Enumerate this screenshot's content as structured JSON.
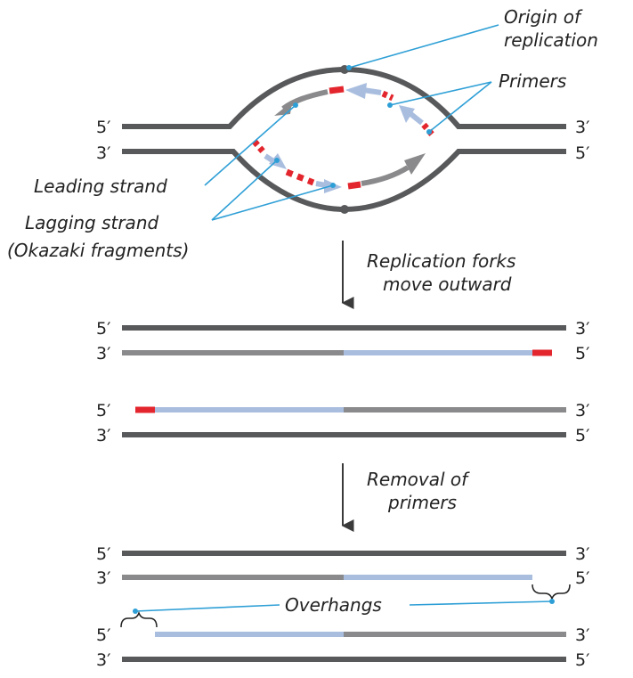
{
  "diagram": {
    "ends": {
      "five_prime": "5′",
      "three_prime": "3′"
    },
    "labels": {
      "origin_line1": "Origin of",
      "origin_line2": "replication",
      "primers": "Primers",
      "leading": "Leading strand",
      "lagging_line1": "Lagging strand",
      "lagging_line2": "(Okazaki fragments)",
      "forks_line1": "Replication forks",
      "forks_line2": "move outward",
      "removal_line1": "Removal of",
      "removal_line2": "primers",
      "overhangs": "Overhangs"
    },
    "colors": {
      "parental": "#58595b",
      "leading_new": "#8a8a8c",
      "lagging_new": "#a9bedf",
      "primer": "#e3262d",
      "callout": "#2e9fd6",
      "arrow": "#3a3a3a"
    }
  }
}
